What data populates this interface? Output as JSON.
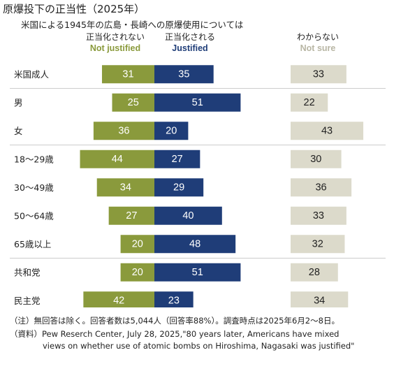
{
  "title": "原爆投下の正当性（2025年）",
  "subtitle": "米国による1945年の広島・長崎への原爆使用については",
  "columns": {
    "not_justified": {
      "jp": "正当化されない",
      "en": "Not justified"
    },
    "justified": {
      "jp": "正当化される",
      "en": "Justified"
    },
    "not_sure": {
      "jp": "わからない",
      "en": "Not sure"
    }
  },
  "colors": {
    "not_justified": "#8a9a3c",
    "justified": "#1f3d78",
    "not_sure": "#dcdacb",
    "separator": "#cccccc"
  },
  "chart_data": {
    "type": "bar",
    "categories": [
      "米国成人",
      "男",
      "女",
      "18〜29歳",
      "30〜49歳",
      "50〜64歳",
      "65歳以上",
      "共和党",
      "民主党"
    ],
    "series": [
      {
        "name": "Not justified",
        "values": [
          31,
          25,
          36,
          44,
          34,
          27,
          20,
          20,
          42
        ]
      },
      {
        "name": "Justified",
        "values": [
          35,
          51,
          20,
          27,
          29,
          40,
          48,
          51,
          23
        ]
      },
      {
        "name": "Not sure",
        "values": [
          33,
          22,
          43,
          30,
          36,
          33,
          32,
          28,
          34
        ]
      }
    ],
    "separator_after": [
      0,
      2,
      6
    ]
  },
  "footnote": {
    "note": "（注）無回答は除く。回答者数は5,044人（回答率88%）。調査時点は2025年6月2〜8日。",
    "source_line1": "（資料）Pew Reserch Center, July 28, 2025,\"80 years later, Americans have mixed",
    "source_line2": "views on whether use of atomic bombs on Hiroshima, Nagasaki was justified\""
  }
}
